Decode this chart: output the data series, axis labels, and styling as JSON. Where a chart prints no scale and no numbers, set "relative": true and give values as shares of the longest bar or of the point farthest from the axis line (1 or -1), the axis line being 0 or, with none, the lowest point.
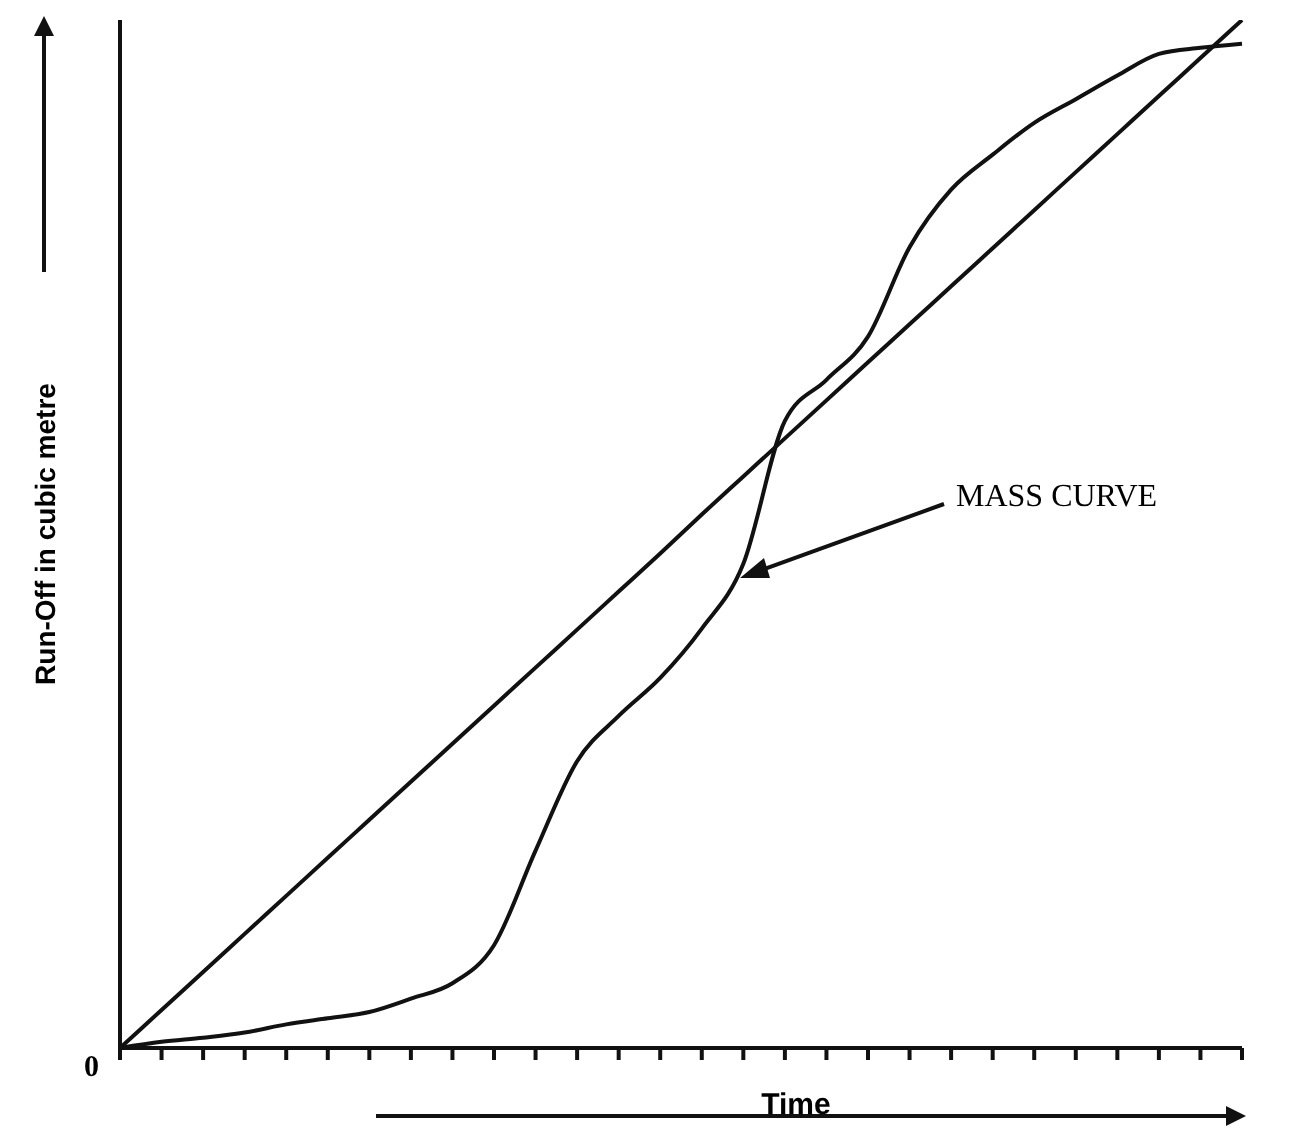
{
  "chart_data": {
    "type": "line",
    "relative": true,
    "xlabel": "Time",
    "ylabel": "Run-Off in cubic metre",
    "categories": [
      null,
      null,
      null,
      null,
      null,
      null,
      null,
      null,
      null,
      null,
      null,
      null,
      null,
      null,
      null,
      null,
      null,
      null,
      null,
      null,
      null,
      null,
      null,
      null,
      null,
      null,
      null,
      null
    ],
    "series": [
      {
        "color": "#111111",
        "values": [
          0,
          0.006,
          0.01,
          0.015,
          0.023,
          0.029,
          0.035,
          0.048,
          0.063,
          0.1,
          0.192,
          0.279,
          0.323,
          0.36,
          0.408,
          0.471,
          0.61,
          0.65,
          0.692,
          0.779,
          0.835,
          0.869,
          0.9,
          0.923,
          0.946,
          0.967,
          0.973,
          0.977
        ]
      },
      {
        "color": "#111111",
        "values": [
          0,
          0.037,
          0.074,
          0.111,
          0.148,
          0.185,
          0.222,
          0.259,
          0.296,
          0.333,
          0.37,
          0.407,
          0.444,
          0.481,
          0.519,
          0.556,
          0.593,
          0.63,
          0.667,
          0.704,
          0.741,
          0.778,
          0.815,
          0.852,
          0.889,
          0.926,
          0.963,
          1
        ]
      }
    ],
    "annotations": [
      "0",
      "MASS CURVE"
    ],
    "marker": "none",
    "line_style": "solid",
    "grid": false,
    "legend": false
  }
}
